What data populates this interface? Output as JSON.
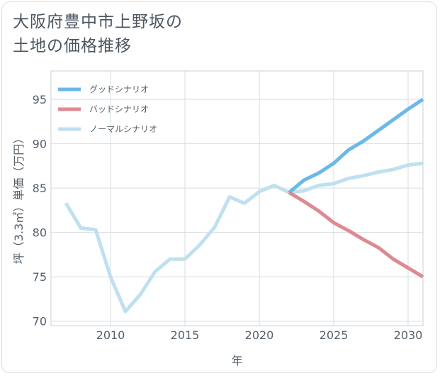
{
  "title_line1": "大阪府豊中市上野坂の",
  "title_line2": "土地の価格推移",
  "chart_data": {
    "type": "line",
    "xlabel": "年",
    "ylabel": "坪（3.3㎡）単価（万円）",
    "xlim": [
      2006,
      2031
    ],
    "ylim": [
      69.5,
      98.2
    ],
    "x_ticks": [
      2010,
      2015,
      2020,
      2025,
      2030
    ],
    "y_ticks": [
      70,
      75,
      80,
      85,
      90,
      95
    ],
    "grid": true,
    "legend_position": "top-left",
    "series": [
      {
        "name": "グッドシナリオ",
        "color": "#6bb8ea",
        "x": [
          2022,
          2023,
          2024,
          2025,
          2026,
          2027,
          2028,
          2029,
          2030,
          2031
        ],
        "y": [
          84.5,
          85.9,
          86.7,
          87.8,
          89.3,
          90.3,
          91.5,
          92.7,
          93.9,
          95.0
        ]
      },
      {
        "name": "バッドシナリオ",
        "color": "#dd8a92",
        "x": [
          2022,
          2023,
          2024,
          2025,
          2026,
          2027,
          2028,
          2029,
          2030,
          2031
        ],
        "y": [
          84.5,
          83.5,
          82.4,
          81.1,
          80.2,
          79.2,
          78.3,
          77.0,
          76.0,
          75.0
        ]
      },
      {
        "name": "ノーマルシナリオ",
        "color": "#bfe0ef",
        "x": [
          2007,
          2008,
          2009,
          2010,
          2011,
          2012,
          2013,
          2014,
          2015,
          2016,
          2017,
          2018,
          2019,
          2020,
          2021,
          2022,
          2023,
          2024,
          2025,
          2026,
          2027,
          2028,
          2029,
          2030,
          2031
        ],
        "y": [
          83.3,
          80.5,
          80.3,
          75.0,
          71.1,
          73.0,
          75.6,
          77.0,
          77.0,
          78.6,
          80.6,
          84.0,
          83.3,
          84.6,
          85.3,
          84.5,
          84.7,
          85.3,
          85.5,
          86.1,
          86.4,
          86.8,
          87.1,
          87.6,
          87.8
        ]
      }
    ]
  }
}
